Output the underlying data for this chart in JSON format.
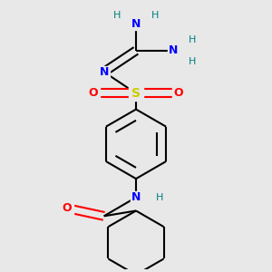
{
  "bg_color": "#e8e8e8",
  "atom_colors": {
    "C": "#000000",
    "N": "#0000ff",
    "O": "#ff0000",
    "S": "#cccc00",
    "H": "#008080"
  },
  "bond_color": "#000000",
  "bond_width": 1.5,
  "figsize": [
    3.0,
    3.0
  ],
  "dpi": 100
}
